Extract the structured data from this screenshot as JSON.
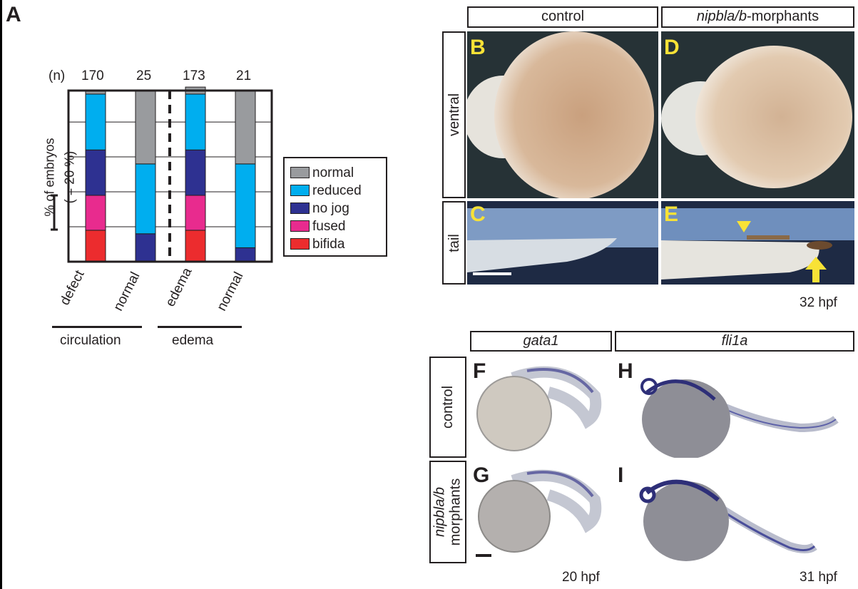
{
  "panel_a": {
    "letter": "A",
    "n_prefix": "(n)",
    "y_label_line1": "% of embryos",
    "y_label_line2": "(    = 20 %)",
    "groups": [
      "circulation",
      "edema"
    ]
  },
  "chart_data": {
    "type": "bar",
    "stacked": true,
    "categories": [
      "defect",
      "normal",
      "edema",
      "normal"
    ],
    "n_values": [
      "170",
      "25",
      "173",
      "21"
    ],
    "series": [
      {
        "name": "bifida",
        "color": "#ec2c2e",
        "values": [
          9,
          0,
          9,
          0
        ]
      },
      {
        "name": "fused",
        "color": "#e82b8e",
        "values": [
          10,
          0,
          10,
          0
        ]
      },
      {
        "name": "no jog",
        "color": "#2e3191",
        "values": [
          13,
          8,
          13,
          4
        ]
      },
      {
        "name": "reduced",
        "color": "#00aeef",
        "values": [
          16,
          20,
          16,
          24
        ]
      },
      {
        "name": "normal",
        "color": "#999b9e",
        "values": [
          1,
          21,
          2,
          21
        ]
      }
    ],
    "ylim": [
      0,
      49
    ],
    "grid": true,
    "legend_position": "right"
  },
  "legend": [
    {
      "label": "normal",
      "color": "#999b9e"
    },
    {
      "label": "reduced",
      "color": "#00aeef"
    },
    {
      "label": "no jog",
      "color": "#2e3191"
    },
    {
      "label": "fused",
      "color": "#e82b8e"
    },
    {
      "label": "bifida",
      "color": "#ec2c2e"
    }
  ],
  "panels_top": {
    "col_headers": [
      "control",
      "nipbla/b",
      "-morphants"
    ],
    "row_headers": [
      "ventral",
      "tail"
    ],
    "letters": [
      "B",
      "D",
      "C",
      "E"
    ],
    "stage": "32 hpf"
  },
  "panels_bottom": {
    "col_headers": [
      "gata1",
      "fli1a"
    ],
    "row_headers": [
      "control",
      "nipbla/b",
      "morphants"
    ],
    "letters": [
      "F",
      "H",
      "G",
      "I"
    ],
    "stage_left": "20 hpf",
    "stage_right": "31 hpf"
  }
}
